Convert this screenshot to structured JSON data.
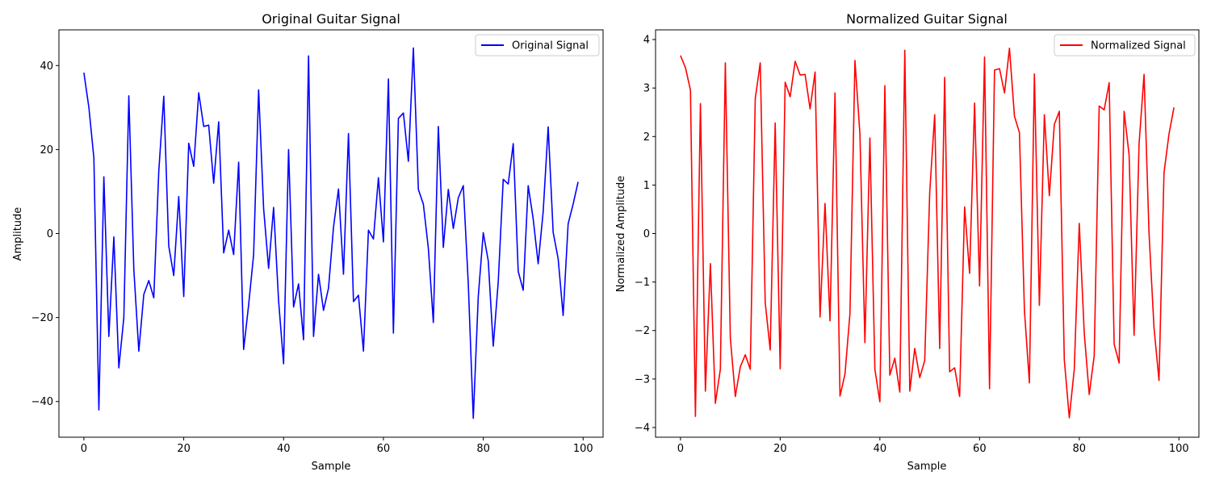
{
  "chart_data": [
    {
      "type": "line",
      "title": "Original Guitar Signal",
      "xlabel": "Sample",
      "ylabel": "Amplitude",
      "xlim": [
        -5,
        104
      ],
      "ylim": [
        -48.5,
        48.5
      ],
      "xticks": [
        0,
        20,
        40,
        60,
        80,
        100
      ],
      "yticks": [
        -40,
        -20,
        0,
        20,
        40
      ],
      "legend_position": "top-right",
      "grid": false,
      "series": [
        {
          "name": "Original Signal",
          "color": "#0000ff",
          "values": [
            38.3,
            30.0,
            18.0,
            -42.0,
            13.5,
            -24.5,
            -0.8,
            -32.0,
            -20.0,
            32.8,
            -8.5,
            -28.0,
            -14.5,
            -11.2,
            -15.3,
            14.8,
            32.7,
            -3.0,
            -10.0,
            8.8,
            -15.0,
            21.5,
            16.0,
            33.5,
            25.5,
            25.8,
            12.0,
            26.6,
            -4.6,
            0.8,
            -5.0,
            17.0,
            -27.6,
            -17.0,
            -5.0,
            34.2,
            6.0,
            -8.3,
            6.2,
            -16.0,
            -31.0,
            20.0,
            -17.5,
            -12.0,
            -25.3,
            42.3,
            -24.5,
            -9.7,
            -18.3,
            -13.0,
            1.5,
            10.6,
            -9.7,
            23.8,
            -16.2,
            -14.7,
            -28.0,
            0.8,
            -1.3,
            13.3,
            -2.0,
            36.8,
            -23.7,
            27.4,
            28.7,
            17.2,
            44.2,
            10.5,
            7.0,
            -3.5,
            -21.2,
            25.5,
            -3.3,
            10.5,
            1.2,
            8.5,
            11.4,
            -12.0,
            -44.0,
            -15.0,
            0.2,
            -6.5,
            -26.8,
            -11.5,
            12.9,
            11.8,
            21.4,
            -9.0,
            -13.5,
            11.4,
            3.5,
            -7.2,
            5.2,
            25.4,
            0.3,
            -6.0,
            -19.5,
            2.3,
            7.0,
            12.3
          ]
        }
      ]
    },
    {
      "type": "line",
      "title": "Normalized Guitar Signal",
      "xlabel": "Sample",
      "ylabel": "Normalized Amplitude",
      "xlim": [
        -5,
        104
      ],
      "ylim": [
        -4.2,
        4.2
      ],
      "xticks": [
        0,
        20,
        40,
        60,
        80,
        100
      ],
      "yticks": [
        -4,
        -3,
        -2,
        -1,
        0,
        1,
        2,
        3,
        4
      ],
      "legend_position": "top-right",
      "grid": false,
      "series": [
        {
          "name": "Normalized Signal",
          "color": "#ff0000",
          "values": [
            3.67,
            3.42,
            2.96,
            -3.77,
            2.68,
            -3.25,
            -0.62,
            -3.5,
            -2.8,
            3.52,
            -2.15,
            -3.36,
            -2.75,
            -2.5,
            -2.8,
            2.78,
            3.52,
            -1.42,
            -2.4,
            2.28,
            -2.79,
            3.12,
            2.82,
            3.55,
            3.27,
            3.28,
            2.57,
            3.33,
            -1.72,
            0.62,
            -1.8,
            2.9,
            -3.35,
            -2.9,
            -1.65,
            3.57,
            2.05,
            -2.25,
            1.97,
            -2.8,
            -3.47,
            3.05,
            -2.92,
            -2.57,
            -3.27,
            3.78,
            -3.25,
            -2.37,
            -2.97,
            -2.62,
            0.85,
            2.45,
            -2.37,
            3.22,
            -2.85,
            -2.77,
            -3.36,
            0.55,
            -0.82,
            2.69,
            -1.08,
            3.64,
            -3.2,
            3.37,
            3.4,
            2.9,
            3.82,
            2.42,
            2.08,
            -1.58,
            -3.08,
            3.29,
            -1.48,
            2.45,
            0.78,
            2.25,
            2.52,
            -2.6,
            -3.8,
            -2.8,
            0.21,
            -2.05,
            -3.32,
            -2.52,
            2.63,
            2.55,
            3.11,
            -2.28,
            -2.67,
            2.52,
            1.62,
            -2.1,
            1.85,
            3.28,
            0.0,
            -1.95,
            -3.03,
            1.25,
            2.05,
            2.6
          ]
        }
      ]
    }
  ]
}
